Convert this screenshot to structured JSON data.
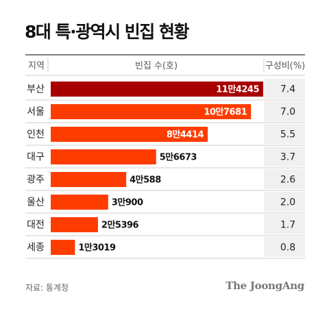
{
  "title": "8대 특·광역시 빈집 현황",
  "source": "자료: 통계청",
  "brand": "The JoongAng",
  "colors": {
    "highlight": "#a80000",
    "bar": "#ff3c00",
    "pct_bg": "#f0f0f0",
    "grid": "#cccccc"
  },
  "chart_data": {
    "type": "bar",
    "orientation": "horizontal",
    "headers": {
      "region": "지역",
      "value": "빈집 수(호)",
      "share": "구성비(%)"
    },
    "categories": [
      "부산",
      "서울",
      "인천",
      "대구",
      "광주",
      "울산",
      "대전",
      "세종"
    ],
    "values": [
      114245,
      107681,
      84414,
      56673,
      40588,
      30900,
      25396,
      13019
    ],
    "value_labels": [
      "11만4245",
      "10만7681",
      "8만4414",
      "5만6673",
      "4만588",
      "3만900",
      "2만5396",
      "1만3019"
    ],
    "shares": [
      "7.4",
      "7.0",
      "5.5",
      "3.7",
      "2.6",
      "2.0",
      "1.7",
      "0.8"
    ],
    "highlight_index": 0
  }
}
